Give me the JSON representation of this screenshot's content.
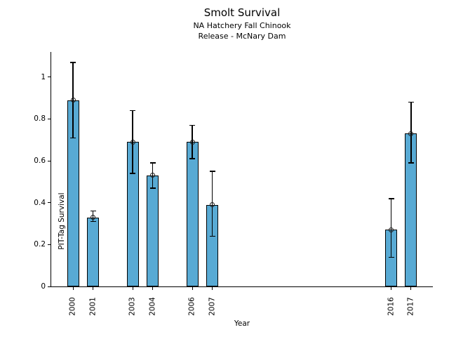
{
  "chart": {
    "title": "Smolt Survival",
    "subtitle1": "NA Hatchery Fall Chinook",
    "subtitle2": "Release - McNary Dam",
    "xlabel": "Year",
    "ylabel": "PIT-Tag Survival"
  },
  "chart_data": {
    "type": "bar",
    "title": "Smolt Survival",
    "subtitle": [
      "NA Hatchery Fall Chinook",
      "Release - McNary Dam"
    ],
    "xlabel": "Year",
    "ylabel": "PIT-Tag Survival",
    "categories": [
      2000,
      2001,
      2003,
      2004,
      2006,
      2007,
      2016,
      2017
    ],
    "values": [
      0.89,
      0.33,
      0.69,
      0.53,
      0.69,
      0.39,
      0.27,
      0.73
    ],
    "error_low": [
      0.71,
      0.31,
      0.54,
      0.47,
      0.61,
      0.24,
      0.14,
      0.59
    ],
    "error_high": [
      1.07,
      0.36,
      0.84,
      0.59,
      0.77,
      0.55,
      0.42,
      0.88
    ],
    "xlim": [
      1998.9,
      2018.1
    ],
    "ylim": [
      0,
      1.12
    ],
    "yticks": [
      0,
      0.2,
      0.4,
      0.6,
      0.8,
      1
    ],
    "ytick_labels": [
      "0",
      "0.2",
      "0.4",
      "0.6",
      "0.8",
      "1"
    ],
    "x_tick_rotation": 90,
    "bar_width_years": 0.6,
    "bar_color": "#58AAD4",
    "bar_edge_color": "#000000",
    "error_color": "#000000",
    "marker": "open-circle",
    "grid": false,
    "legend": false
  }
}
